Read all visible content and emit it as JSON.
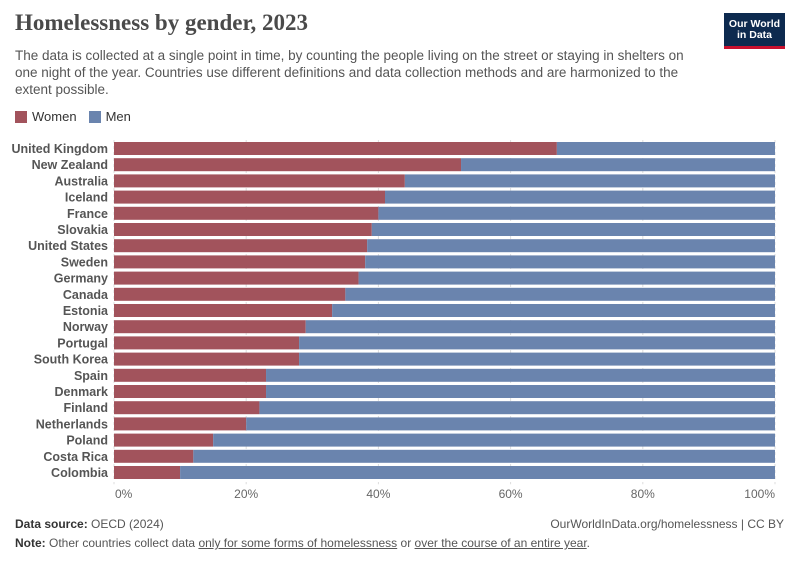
{
  "header": {
    "title": "Homelessness by gender, 2023",
    "subtitle": "The data is collected at a single point in time, by counting the people living on the street or staying in shelters on one night of the year. Countries use different definitions and data collection methods and are harmonized to the extent possible."
  },
  "logo": {
    "line1": "Our World",
    "line2": "in Data"
  },
  "legend": [
    {
      "label": "Women",
      "color": "#a2535c"
    },
    {
      "label": "Men",
      "color": "#6a84ae"
    }
  ],
  "footer": {
    "source_label": "Data source:",
    "source_value": "OECD (2024)",
    "url": "OurWorldInData.org/homelessness | CC BY",
    "note_label": "Note:",
    "note_part1": "Other countries collect data",
    "note_link1": "only for some forms of homelessness",
    "note_part2": "or",
    "note_link2": "over the course of an entire year",
    "note_end": "."
  },
  "chart_data": {
    "type": "bar",
    "orientation": "horizontal",
    "stacked": true,
    "relative": true,
    "categories": [
      "United Kingdom",
      "New Zealand",
      "Australia",
      "Iceland",
      "France",
      "Slovakia",
      "United States",
      "Sweden",
      "Germany",
      "Canada",
      "Estonia",
      "Norway",
      "Portugal",
      "South Korea",
      "Spain",
      "Denmark",
      "Finland",
      "Netherlands",
      "Poland",
      "Costa Rica",
      "Colombia"
    ],
    "series": [
      {
        "name": "Women",
        "color": "#a2535c",
        "values": [
          67,
          52.5,
          44,
          41,
          40,
          39,
          38.3,
          38,
          37,
          35,
          33,
          29,
          28,
          28,
          23,
          23,
          22,
          20,
          15,
          12,
          10
        ]
      },
      {
        "name": "Men",
        "color": "#6a84ae",
        "values": [
          33,
          47.5,
          56,
          59,
          60,
          61,
          61.7,
          62,
          63,
          65,
          67,
          71,
          72,
          72,
          77,
          77,
          78,
          80,
          85,
          88,
          90
        ]
      }
    ],
    "xlim": [
      0,
      100
    ],
    "xticks": [
      "0%",
      "20%",
      "40%",
      "60%",
      "80%",
      "100%"
    ],
    "xtick_values": [
      0,
      20,
      40,
      60,
      80,
      100
    ],
    "grid": true,
    "legend_position": "top-left"
  }
}
